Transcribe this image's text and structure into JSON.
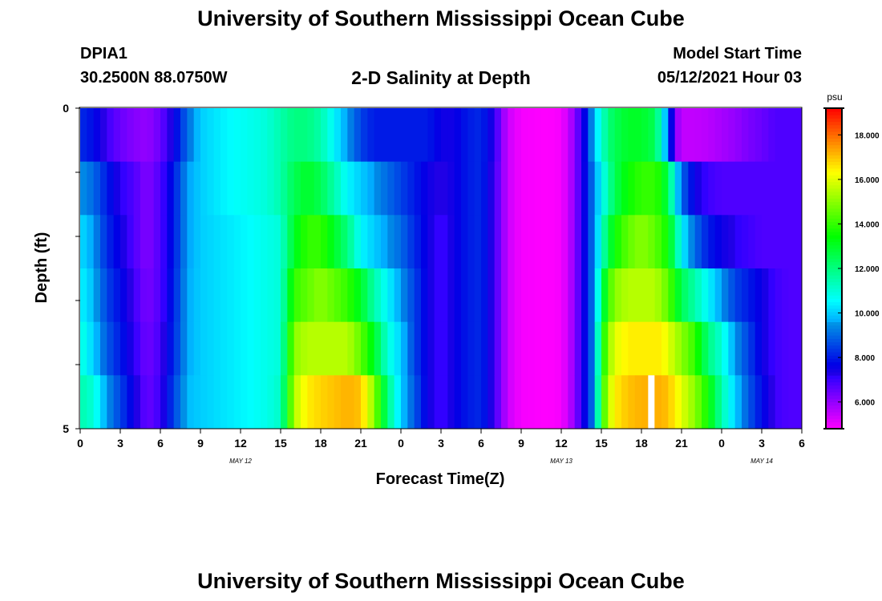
{
  "header": {
    "title_top": "University of Southern Mississippi Ocean Cube",
    "title_bottom": "University of Southern Mississippi Ocean Cube",
    "station": "DPIA1",
    "coords": "30.2500N  88.0750W",
    "chart_title": "2-D Salinity at Depth",
    "model_label": "Model Start Time",
    "model_time": "05/12/2021 Hour 03"
  },
  "chart_data": {
    "type": "heatmap",
    "title": "2-D Salinity at Depth",
    "xlabel": "Forecast Time(Z)",
    "ylabel": "Depth (ft)",
    "x_hours": [
      0,
      54
    ],
    "y_range": [
      0,
      5
    ],
    "x_tick_labels": [
      "0",
      "3",
      "6",
      "9",
      "12",
      "15",
      "18",
      "21",
      "0",
      "3",
      "6",
      "9",
      "12",
      "15",
      "18",
      "21",
      "0",
      "3",
      "6"
    ],
    "y_tick_labels": [
      "0",
      "5"
    ],
    "date_labels": [
      {
        "text": "MAY 12",
        "hour": 12
      },
      {
        "text": "MAY 13",
        "hour": 36
      },
      {
        "text": "MAY 14",
        "hour": 51
      }
    ],
    "colorbar": {
      "unit": "psu",
      "min": 4.8,
      "max": 19.2,
      "tick_labels": [
        "6.000",
        "8.000",
        "10.000",
        "12.000",
        "14.000",
        "16.000",
        "18.000"
      ],
      "tick_values": [
        6,
        8,
        10,
        12,
        14,
        16,
        18
      ]
    },
    "knots": [
      [
        0,
        [
          8.2,
          9.5,
          10.2,
          10.5,
          11.0,
          11.5
        ]
      ],
      [
        1,
        [
          7.8,
          9.0,
          9.5,
          9.8,
          10.0,
          11.0
        ]
      ],
      [
        2,
        [
          7.0,
          8.0,
          8.2,
          8.5,
          8.8,
          9.5
        ]
      ],
      [
        3,
        [
          6.5,
          7.2,
          7.5,
          7.8,
          8.0,
          8.5
        ]
      ],
      [
        4,
        [
          6.2,
          6.8,
          6.8,
          7.0,
          7.2,
          7.5
        ]
      ],
      [
        5,
        [
          6.0,
          6.2,
          6.2,
          6.3,
          6.4,
          6.5
        ]
      ],
      [
        6,
        [
          6.5,
          6.8,
          6.8,
          6.8,
          6.9,
          7.0
        ]
      ],
      [
        7,
        [
          7.5,
          8.0,
          8.0,
          8.1,
          8.2,
          8.5
        ]
      ],
      [
        8,
        [
          9.0,
          9.5,
          9.5,
          9.6,
          9.6,
          9.8
        ]
      ],
      [
        9,
        [
          10.0,
          10.0,
          10.0,
          10.0,
          10.0,
          10.0
        ]
      ],
      [
        11,
        [
          10.5,
          10.5,
          10.3,
          10.3,
          10.3,
          10.3
        ]
      ],
      [
        13,
        [
          10.8,
          10.8,
          10.6,
          10.6,
          10.6,
          10.6
        ]
      ],
      [
        14,
        [
          11.0,
          11.0,
          10.8,
          10.8,
          10.8,
          10.8
        ]
      ],
      [
        15,
        [
          11.5,
          11.5,
          11.0,
          11.0,
          11.0,
          11.2
        ]
      ],
      [
        16,
        [
          12.0,
          12.5,
          13.0,
          14.0,
          15.0,
          15.5
        ]
      ],
      [
        17,
        [
          12.0,
          13.0,
          14.0,
          14.5,
          15.5,
          16.5
        ]
      ],
      [
        18,
        [
          11.5,
          12.5,
          14.0,
          15.0,
          15.5,
          16.8
        ]
      ],
      [
        19,
        [
          10.5,
          11.5,
          13.0,
          14.5,
          15.5,
          17.0
        ]
      ],
      [
        20,
        [
          9.5,
          10.5,
          12.0,
          14.0,
          15.5,
          17.2
        ]
      ],
      [
        21,
        [
          8.5,
          10.0,
          10.5,
          13.0,
          14.5,
          17.0
        ]
      ],
      [
        22,
        [
          8.0,
          9.5,
          10.0,
          11.5,
          13.0,
          15.0
        ]
      ],
      [
        23,
        [
          8.0,
          9.0,
          9.5,
          10.5,
          11.0,
          12.0
        ]
      ],
      [
        24,
        [
          8.0,
          8.5,
          9.0,
          9.5,
          10.0,
          10.0
        ]
      ],
      [
        25,
        [
          8.0,
          8.0,
          8.2,
          8.5,
          8.5,
          8.8
        ]
      ],
      [
        26,
        [
          8.0,
          7.5,
          7.5,
          7.5,
          7.5,
          7.5
        ]
      ],
      [
        27,
        [
          7.5,
          7.2,
          7.0,
          7.0,
          7.0,
          7.0
        ]
      ],
      [
        28,
        [
          7.5,
          7.5,
          7.5,
          7.5,
          7.5,
          7.5
        ]
      ],
      [
        29,
        [
          8.0,
          8.0,
          8.0,
          8.0,
          8.0,
          8.0
        ]
      ],
      [
        30,
        [
          8.2,
          8.2,
          8.2,
          8.2,
          8.2,
          8.2
        ]
      ],
      [
        31,
        [
          7.2,
          7.0,
          7.0,
          7.0,
          7.0,
          7.0
        ]
      ],
      [
        31.6,
        [
          6.0,
          6.0,
          6.0,
          6.0,
          6.0,
          6.0
        ]
      ],
      [
        32.2,
        [
          5.3,
          5.3,
          5.3,
          5.3,
          5.3,
          5.3
        ]
      ],
      [
        33,
        [
          4.9,
          4.9,
          4.9,
          4.9,
          4.9,
          4.9
        ]
      ],
      [
        35,
        [
          4.8,
          4.8,
          4.8,
          4.8,
          4.8,
          4.8
        ]
      ],
      [
        36,
        [
          4.9,
          4.9,
          4.9,
          4.9,
          4.9,
          4.9
        ]
      ],
      [
        36.6,
        [
          5.5,
          5.5,
          5.5,
          5.5,
          5.5,
          5.5
        ]
      ],
      [
        37.2,
        [
          6.5,
          6.5,
          6.5,
          6.5,
          6.5,
          6.5
        ]
      ],
      [
        37.7,
        [
          7.5,
          7.5,
          7.5,
          7.5,
          7.5,
          7.5
        ]
      ],
      [
        38,
        [
          8.5,
          8.2,
          8.2,
          8.2,
          8.2,
          8.2
        ]
      ],
      [
        38.5,
        [
          10.0,
          9.5,
          9.5,
          9.5,
          9.5,
          9.5
        ]
      ],
      [
        39,
        [
          11.0,
          10.5,
          11.0,
          12.0,
          13.0,
          13.5
        ]
      ],
      [
        39.5,
        [
          12.0,
          11.5,
          12.5,
          14.0,
          15.0,
          15.5
        ]
      ],
      [
        40,
        [
          12.5,
          12.5,
          13.5,
          15.0,
          16.0,
          16.5
        ]
      ],
      [
        41,
        [
          13.0,
          13.5,
          14.5,
          15.5,
          16.5,
          17.0
        ]
      ],
      [
        42,
        [
          13.0,
          14.0,
          15.0,
          15.5,
          16.5,
          17.2
        ]
      ],
      [
        43,
        [
          12.5,
          14.0,
          14.5,
          15.5,
          16.5,
          17.2
        ]
      ],
      [
        43.5,
        [
          11.0,
          13.5,
          14.0,
          15.0,
          16.5,
          17.2
        ]
      ],
      [
        44,
        [
          9.0,
          12.5,
          13.5,
          14.5,
          16.0,
          17.0
        ]
      ],
      [
        44.5,
        [
          6.2,
          10.5,
          12.0,
          13.5,
          15.5,
          16.5
        ]
      ],
      [
        45,
        [
          5.5,
          9.0,
          10.5,
          12.5,
          15.0,
          16.0
        ]
      ],
      [
        46,
        [
          5.5,
          7.5,
          9.0,
          11.5,
          14.0,
          15.0
        ]
      ],
      [
        47,
        [
          5.6,
          7.0,
          8.0,
          10.5,
          12.0,
          13.5
        ]
      ],
      [
        48,
        [
          5.8,
          6.8,
          7.5,
          9.5,
          11.0,
          11.5
        ]
      ],
      [
        49,
        [
          6.0,
          6.8,
          7.2,
          8.5,
          9.5,
          10.0
        ]
      ],
      [
        50,
        [
          6.3,
          6.8,
          7.0,
          8.0,
          8.5,
          8.8
        ]
      ],
      [
        51,
        [
          6.5,
          6.8,
          6.8,
          7.5,
          7.5,
          7.8
        ]
      ],
      [
        52,
        [
          6.8,
          6.8,
          6.8,
          7.0,
          7.0,
          7.0
        ]
      ],
      [
        53,
        [
          6.8,
          6.8,
          6.8,
          6.8,
          6.8,
          6.8
        ]
      ],
      [
        54,
        [
          6.8,
          6.8,
          6.8,
          6.8,
          6.8,
          6.8
        ]
      ]
    ],
    "missing_cells": [
      {
        "hour": 42.5,
        "row": 5
      }
    ]
  }
}
